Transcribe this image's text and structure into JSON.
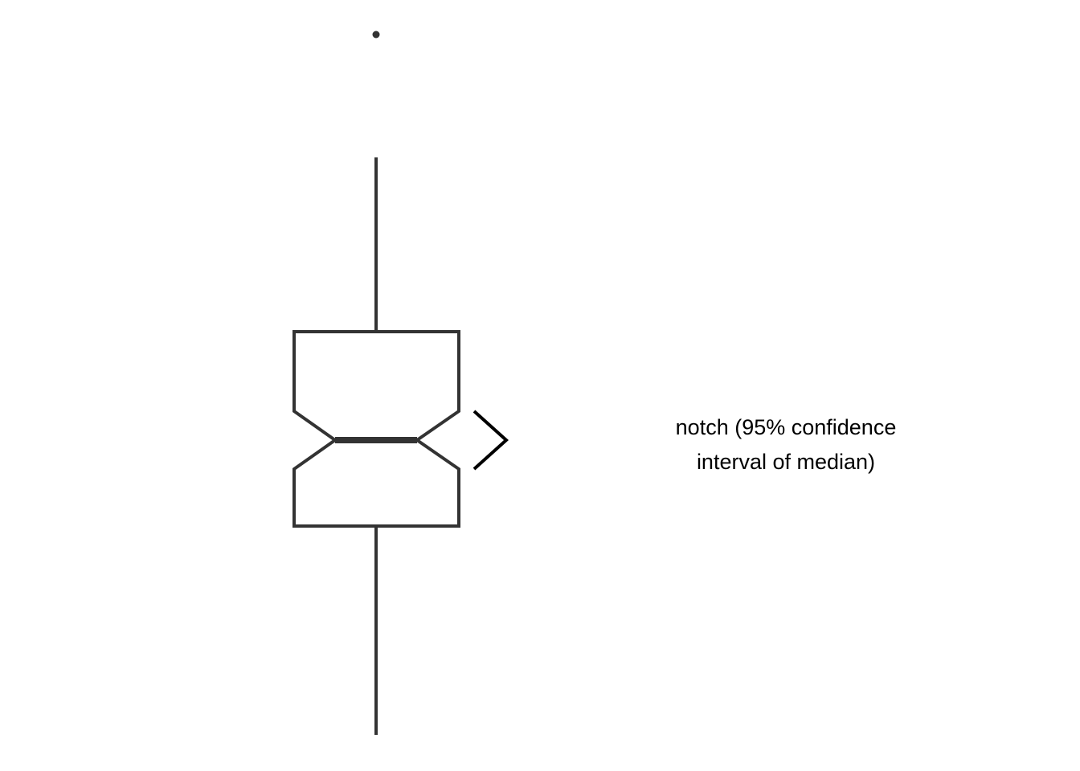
{
  "annotation": {
    "line1": "notch (95% confidence",
    "line2": "interval of median)"
  },
  "colors": {
    "box": "#333333",
    "bracket": "#000000",
    "background": "#ffffff"
  }
}
